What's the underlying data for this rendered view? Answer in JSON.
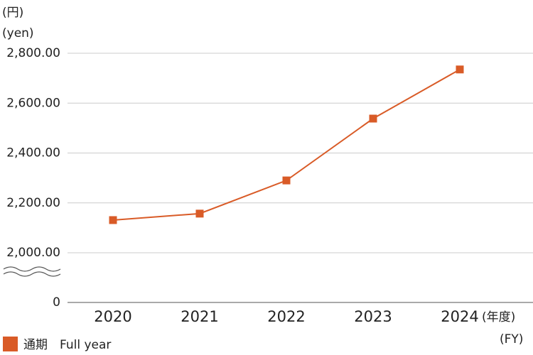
{
  "chart_data": {
    "type": "line",
    "y_unit_labels": [
      "(円)",
      "(yen)"
    ],
    "x_unit_labels": [
      "(年度)",
      "(FY)"
    ],
    "categories": [
      "2020",
      "2021",
      "2022",
      "2023",
      "2024"
    ],
    "series": [
      {
        "name": "通期　Full year",
        "color": "#d95b27",
        "values": [
          2131,
          2157,
          2290,
          2538,
          2735
        ]
      }
    ],
    "ylim": [
      2000,
      2800
    ],
    "yticks": [
      0,
      {
        "value": 2000,
        "label": "2,000.00"
      },
      {
        "value": 2200,
        "label": "2,200.00"
      },
      {
        "value": 2400,
        "label": "2,400.00"
      },
      {
        "value": 2600,
        "label": "2,600.00"
      },
      {
        "value": 2800,
        "label": "2,800.00"
      }
    ],
    "axis_break": true,
    "grid": true,
    "legend": "bottom-left"
  }
}
